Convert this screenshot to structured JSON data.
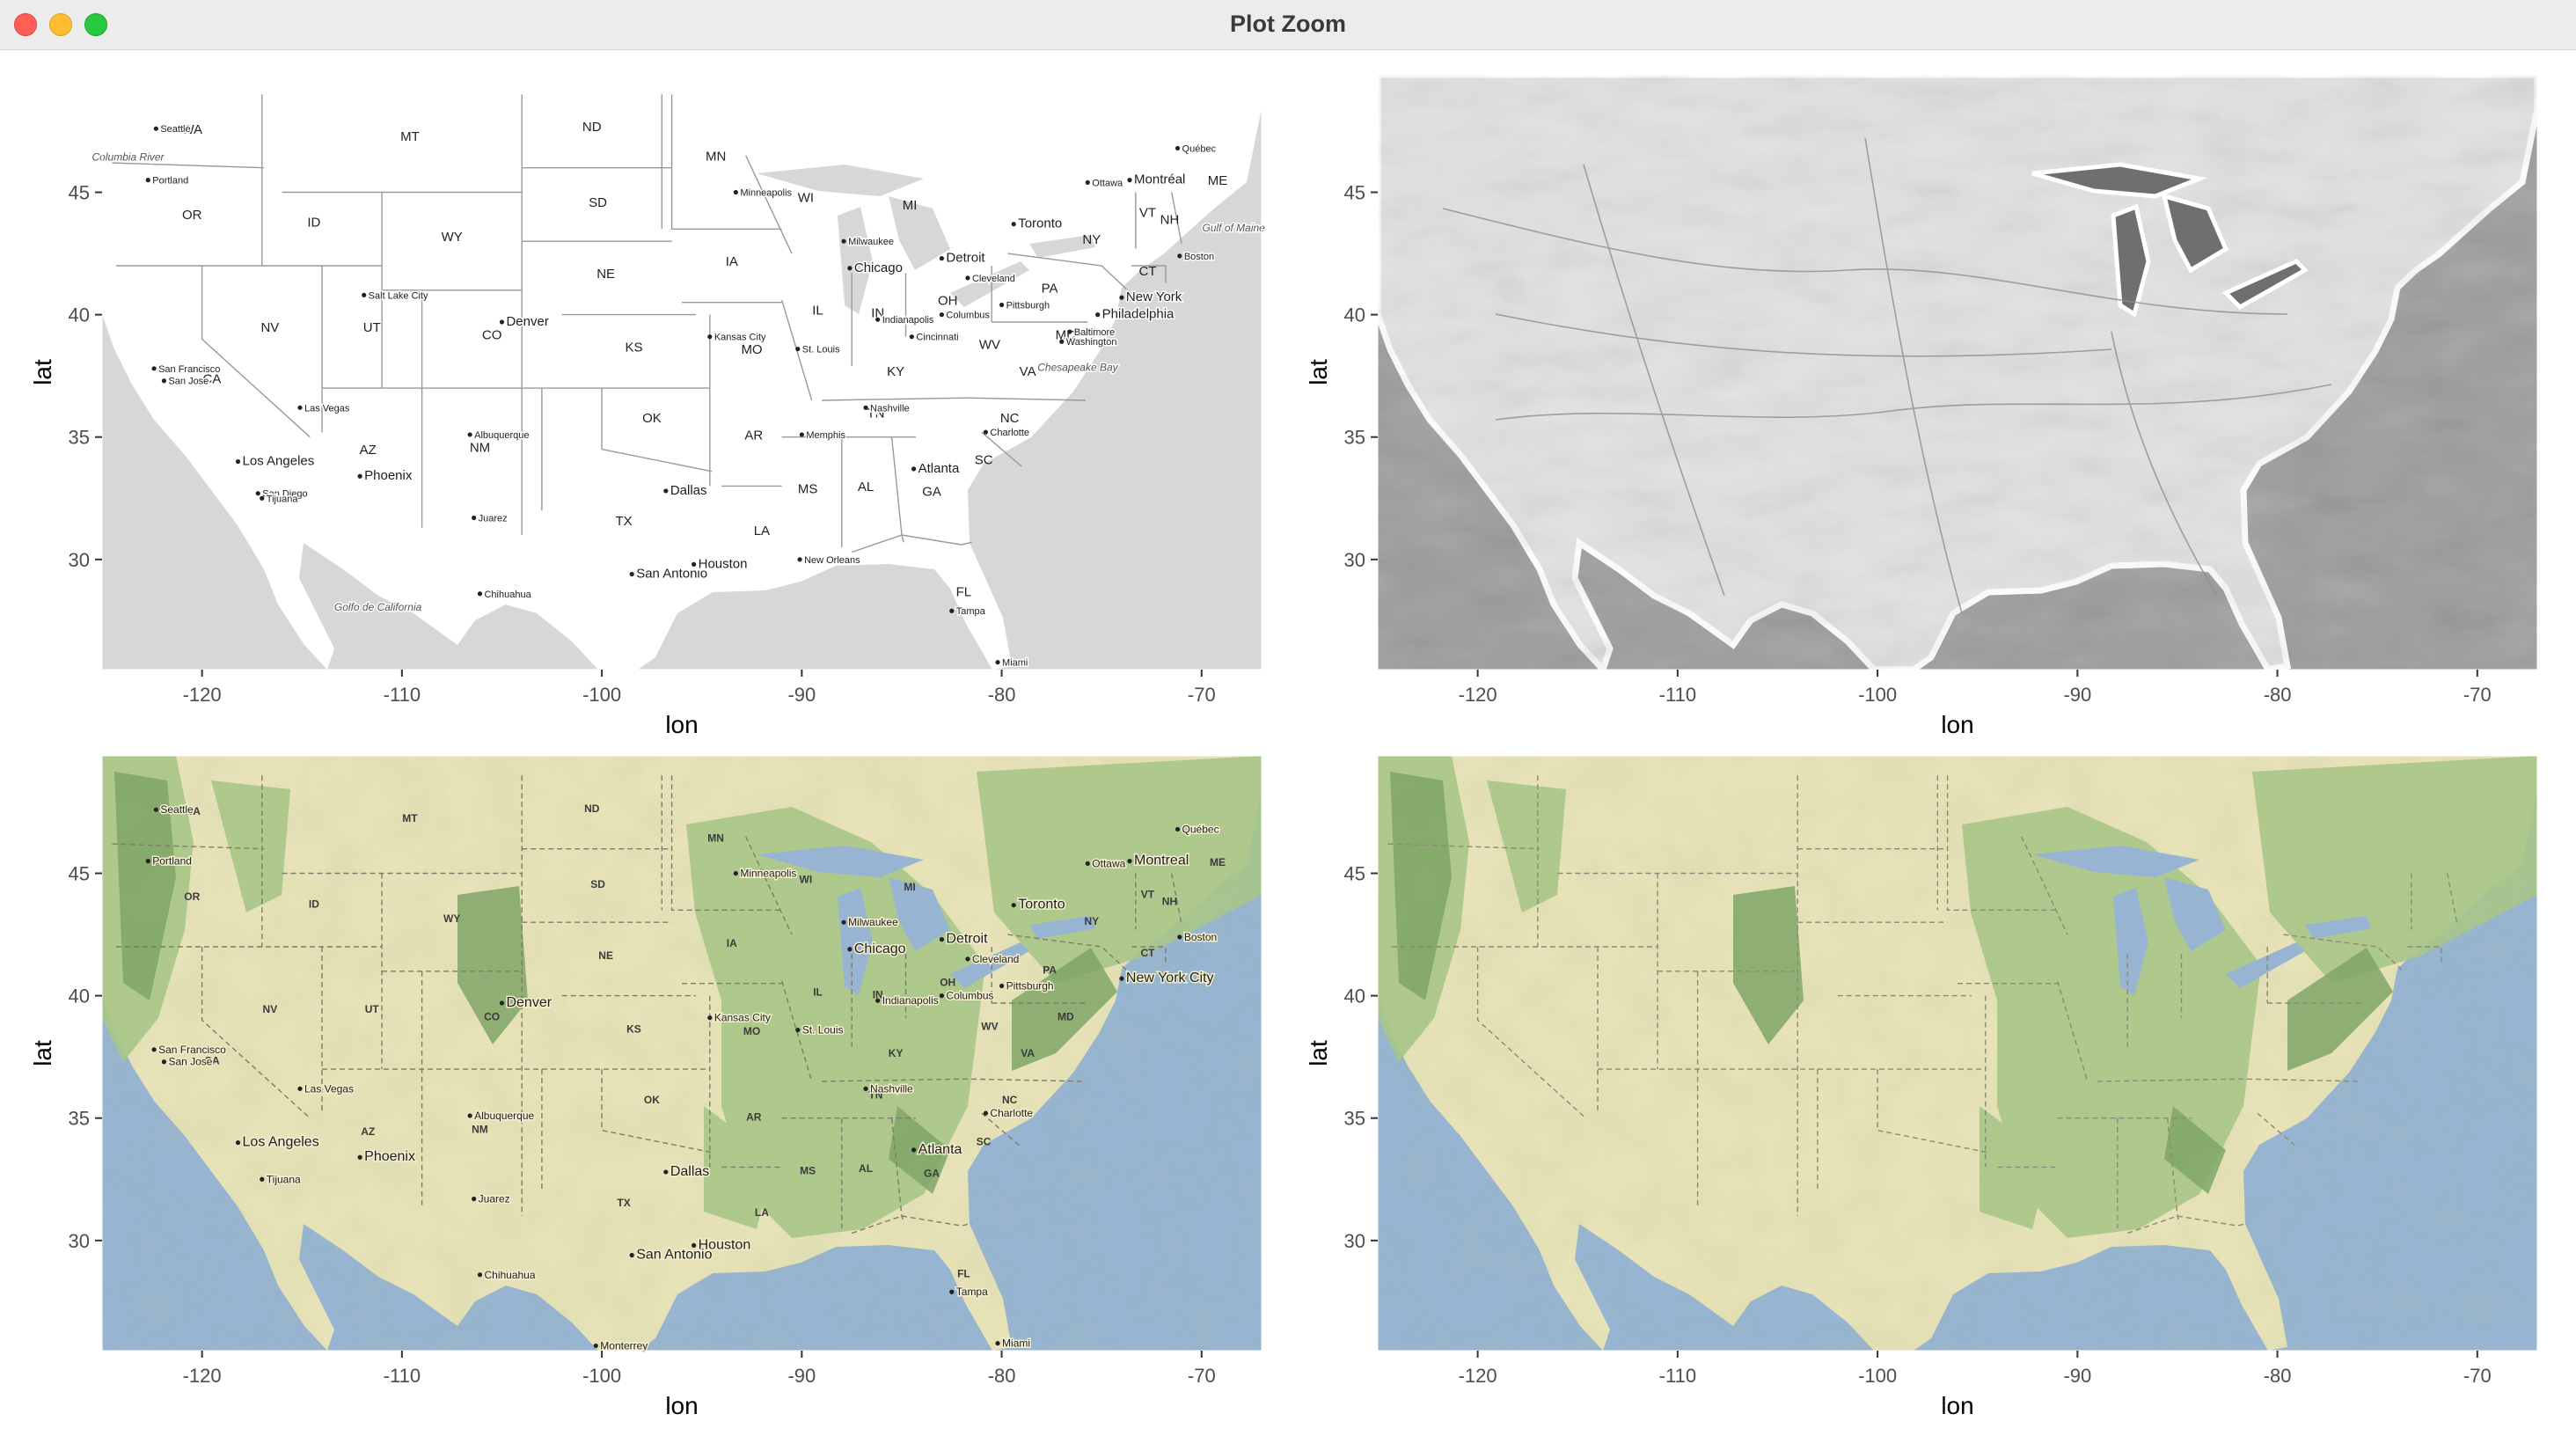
{
  "window": {
    "title": "Plot Zoom"
  },
  "axes": {
    "xlabel": "lon",
    "ylabel": "lat",
    "x_ticks": [
      "-120",
      "-110",
      "-100",
      "-90",
      "-80",
      "-70"
    ],
    "y_ticks": [
      "45",
      "40",
      "35",
      "30"
    ]
  },
  "panels": [
    {
      "style": "toner-lite",
      "states": [
        "WA",
        "OR",
        "CA",
        "ID",
        "NV",
        "MT",
        "WY",
        "UT",
        "AZ",
        "CO",
        "NM",
        "ND",
        "SD",
        "NE",
        "KS",
        "OK",
        "TX",
        "MN",
        "IA",
        "MO",
        "AR",
        "LA",
        "WI",
        "IL",
        "IN",
        "MI",
        "OH",
        "KY",
        "TN",
        "MS",
        "AL",
        "GA",
        "FL",
        "SC",
        "NC",
        "VA",
        "WV",
        "PA",
        "NY",
        "MD",
        "VT",
        "NH",
        "ME",
        "CT"
      ],
      "cities": [
        "Seattle",
        "Portland",
        "San Francisco",
        "San Jose",
        "Los Angeles",
        "San Diego",
        "Tijuana",
        "Las Vegas",
        "Phoenix",
        "Salt Lake City",
        "Denver",
        "Albuquerque",
        "Juarez",
        "Chihuahua",
        "Dallas",
        "San Antonio",
        "Houston",
        "Minneapolis",
        "Kansas City",
        "St. Louis",
        "Chicago",
        "Milwaukee",
        "Detroit",
        "Toronto",
        "Cleveland",
        "Indianapolis",
        "Columbus",
        "Cincinnati",
        "Pittsburgh",
        "Memphis",
        "Nashville",
        "New Orleans",
        "Atlanta",
        "Charlotte",
        "Tampa",
        "Miami",
        "Washington",
        "Baltimore",
        "Philadelphia",
        "New York",
        "Boston",
        "Montréal",
        "Ottawa",
        "Québec"
      ],
      "features": [
        "Columbia River",
        "Golfo de California",
        "Chesapeake Bay",
        "Gulf of Maine"
      ]
    },
    {
      "style": "watercolor-grayscale"
    },
    {
      "style": "terrain",
      "states": [
        "WA",
        "OR",
        "CA",
        "ID",
        "NV",
        "MT",
        "WY",
        "UT",
        "AZ",
        "CO",
        "NM",
        "ND",
        "SD",
        "NE",
        "KS",
        "OK",
        "TX",
        "MN",
        "IA",
        "MO",
        "AR",
        "LA",
        "WI",
        "IL",
        "IN",
        "MI",
        "OH",
        "KY",
        "TN",
        "MS",
        "AL",
        "GA",
        "FL",
        "SC",
        "NC",
        "VA",
        "WV",
        "PA",
        "NY",
        "MD",
        "VT",
        "NH",
        "ME",
        "CT"
      ],
      "cities": [
        "Seattle",
        "Portland",
        "San Jose",
        "San Francisco",
        "Los Angeles",
        "Tijuana",
        "Las Vegas",
        "Phoenix",
        "Denver",
        "Albuquerque",
        "Juarez",
        "Chihuahua",
        "Dallas",
        "San Antonio",
        "Houston",
        "Minneapolis",
        "Kansas City",
        "St. Louis",
        "Chicago",
        "Milwaukee",
        "Detroit",
        "Toronto",
        "Cleveland",
        "Indianapolis",
        "Columbus",
        "Pittsburgh",
        "Nashville",
        "Atlanta",
        "Charlotte",
        "Tampa",
        "Miami",
        "New York City",
        "Boston",
        "Montreal",
        "Ottawa",
        "Québec",
        "Monterrey"
      ]
    },
    {
      "style": "terrain-background"
    }
  ]
}
